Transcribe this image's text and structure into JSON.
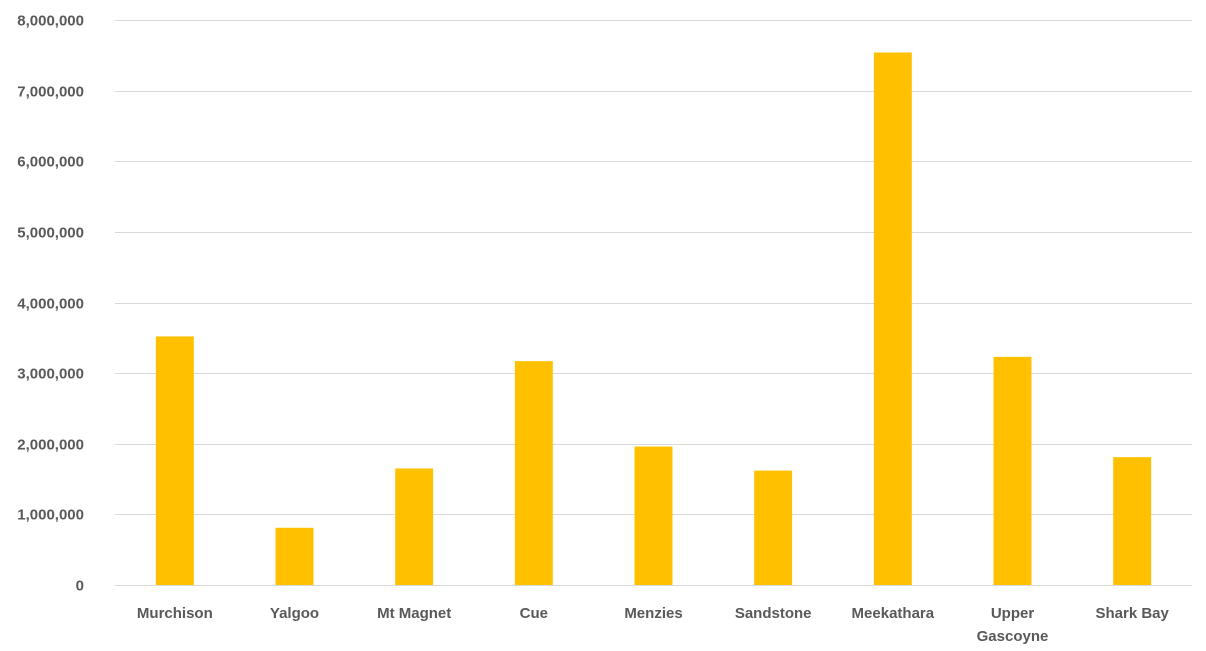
{
  "chart_data": {
    "type": "bar",
    "title": "",
    "xlabel": "",
    "ylabel": "",
    "categories": [
      "Murchison",
      "Yalgoo",
      "Mt Magnet",
      "Cue",
      "Menzies",
      "Sandstone",
      "Meekathara",
      "Upper Gascoyne",
      "Shark Bay"
    ],
    "category_lines": [
      [
        "Murchison"
      ],
      [
        "Yalgoo"
      ],
      [
        "Mt Magnet"
      ],
      [
        "Cue"
      ],
      [
        "Menzies"
      ],
      [
        "Sandstone"
      ],
      [
        "Meekathara"
      ],
      [
        "Upper",
        "Gascoyne"
      ],
      [
        "Shark Bay"
      ]
    ],
    "values": [
      3520000,
      810000,
      1650000,
      3170000,
      1960000,
      1620000,
      7540000,
      3230000,
      1810000
    ],
    "ylim": [
      0,
      8000000
    ],
    "yticks": [
      0,
      1000000,
      2000000,
      3000000,
      4000000,
      5000000,
      6000000,
      7000000,
      8000000
    ],
    "ytick_labels": [
      "0",
      "1,000,000",
      "2,000,000",
      "3,000,000",
      "4,000,000",
      "5,000,000",
      "6,000,000",
      "7,000,000",
      "8,000,000"
    ],
    "grid": true,
    "legend": "none",
    "colors": {
      "bar": "#FFC000",
      "grid": "#D9D9D9",
      "text": "#595959"
    }
  }
}
